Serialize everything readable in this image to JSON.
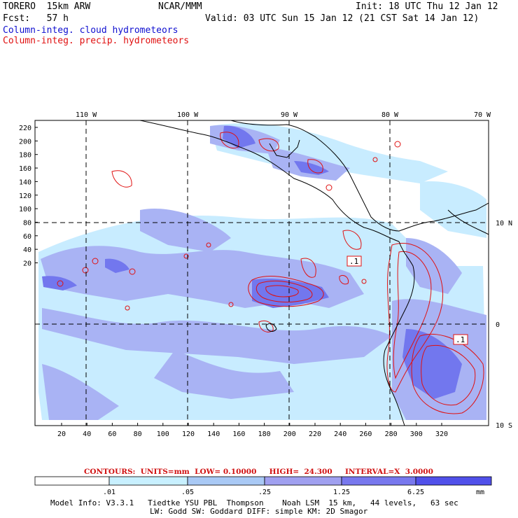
{
  "header": {
    "model": "TORERO  15km ARW",
    "org": "NCAR/MMM",
    "init": "Init: 18 UTC Thu 12 Jan 12",
    "fcst": "Fcst:   57 h",
    "valid": "Valid: 03 UTC Sun 15 Jan 12 (21 CST Sat 14 Jan 12)",
    "line_blue": "Column-integ. cloud hydrometeors",
    "line_red": "Column-integ. precip. hydrometeors"
  },
  "map": {
    "lon_labels": [
      "110 W",
      "100 W",
      "90 W",
      "80 W",
      "70 W"
    ],
    "lat_labels": [
      "10 N",
      "0",
      "10 S"
    ],
    "y_ticks": [
      "220",
      "200",
      "180",
      "160",
      "140",
      "120",
      "100",
      "80",
      "60",
      "40",
      "20"
    ],
    "x_ticks": [
      "20",
      "40",
      "60",
      "80",
      "100",
      "120",
      "140",
      "160",
      "180",
      "200",
      "220",
      "240",
      "260",
      "280",
      "300",
      "320"
    ],
    "contour_labels": [
      ".1",
      ".1"
    ],
    "colors": {
      "grid": "#000000",
      "coast": "#000000",
      "precip": "#e01010",
      "cloud_light": "#c8e8ff",
      "cloud_mid": "#a9aff5",
      "cloud_dark": "#6f73ee"
    }
  },
  "contours_info": "CONTOURS:  UNITS=mm  LOW= 0.10000     HIGH=  24.300     INTERVAL=X  3.0000",
  "colorbar": {
    "labels": [
      ".01",
      ".05",
      ".25",
      "1.25",
      "6.25"
    ],
    "unit": "mm",
    "colors": [
      "#ffffff",
      "#c8f0ff",
      "#a9c9f5",
      "#a0a0f0",
      "#7878ee",
      "#5050ea",
      "#2222e6"
    ]
  },
  "footer": {
    "line1": "Model Info: V3.3.1   Tiedtke YSU PBL  Thompson    Noah LSM  15 km,   44 levels,   63 sec",
    "line2": "LW: Godd SW: Goddard DIFF: simple KM: 2D Smagor"
  }
}
